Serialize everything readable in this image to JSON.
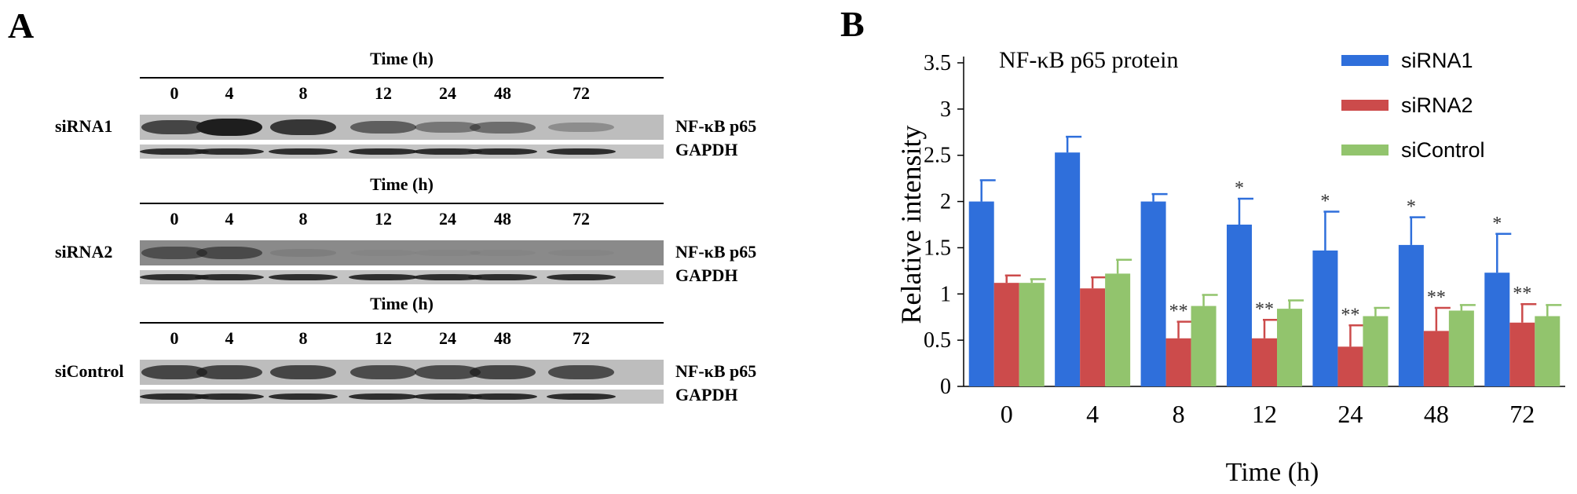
{
  "panel_a": {
    "letter": "A",
    "time_header": "Time (h)",
    "time_points": [
      "0",
      "4",
      "8",
      "12",
      "24",
      "48",
      "72"
    ],
    "groups": [
      {
        "name": "siRNA1",
        "bands": [
          "NF-κB p65",
          "GAPDH"
        ],
        "p65_intensity": [
          0.75,
          1.0,
          0.85,
          0.6,
          0.45,
          0.5,
          0.3
        ]
      },
      {
        "name": "siRNA2",
        "bands": [
          "NF-κB p65",
          "GAPDH"
        ],
        "p65_intensity": [
          0.55,
          0.6,
          0.1,
          0.02,
          0.02,
          0.02,
          0.02
        ]
      },
      {
        "name": "siControl",
        "bands": [
          "NF-κB p65",
          "GAPDH"
        ],
        "p65_intensity": [
          0.75,
          0.75,
          0.75,
          0.72,
          0.72,
          0.75,
          0.72
        ]
      }
    ],
    "band_color": "#1e1e1e"
  },
  "panel_b": {
    "letter": "B"
  },
  "chart_data": {
    "type": "bar",
    "title": "NF-κB p65 protein",
    "xlabel": "Time (h)",
    "ylabel": "Relative intensity",
    "categories": [
      "0",
      "4",
      "8",
      "12",
      "24",
      "48",
      "72"
    ],
    "ylim": [
      0,
      3.5
    ],
    "yticks": [
      "0",
      "0.5",
      "1",
      "1.5",
      "2",
      "2.5",
      "3",
      "3.5"
    ],
    "legend_position": "top-right",
    "grid": false,
    "series": [
      {
        "name": "siRNA1",
        "color": "#2f6fdb",
        "values": [
          2.0,
          2.53,
          2.0,
          1.75,
          1.47,
          1.53,
          1.23
        ],
        "errors": [
          0.23,
          0.17,
          0.08,
          0.28,
          0.42,
          0.3,
          0.42
        ],
        "significance": [
          "",
          "",
          "",
          "*",
          "*",
          "*",
          "*"
        ]
      },
      {
        "name": "siRNA2",
        "color": "#cc4b4b",
        "values": [
          1.12,
          1.06,
          0.52,
          0.52,
          0.43,
          0.6,
          0.69
        ],
        "errors": [
          0.08,
          0.12,
          0.18,
          0.2,
          0.23,
          0.25,
          0.2
        ],
        "significance": [
          "",
          "",
          "**",
          "**",
          "**",
          "**",
          "**"
        ]
      },
      {
        "name": "siControl",
        "color": "#92c46d",
        "values": [
          1.12,
          1.22,
          0.87,
          0.84,
          0.76,
          0.82,
          0.76
        ],
        "errors": [
          0.04,
          0.15,
          0.12,
          0.09,
          0.09,
          0.06,
          0.12
        ],
        "significance": [
          "",
          "",
          "",
          "",
          "",
          "",
          ""
        ]
      }
    ]
  }
}
